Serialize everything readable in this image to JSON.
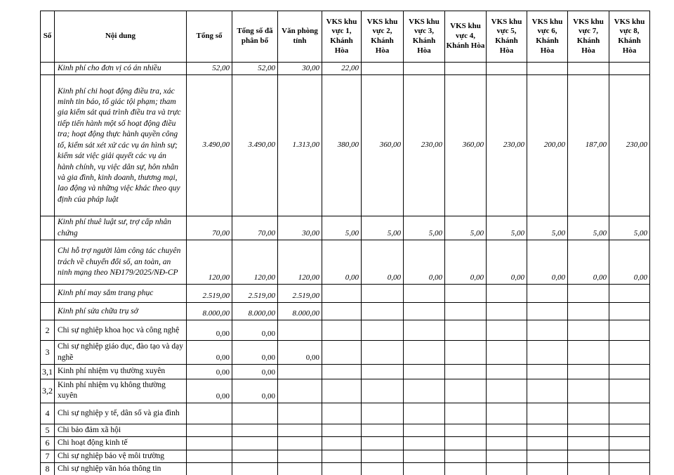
{
  "table": {
    "columns": [
      {
        "key": "so",
        "label": "Số"
      },
      {
        "key": "noi-dung",
        "label": "Nội dung"
      },
      {
        "key": "tong-so",
        "label": "Tổng số"
      },
      {
        "key": "tong-so-da-phan-bo",
        "label": "Tổng số đã\nphân bổ"
      },
      {
        "key": "van-phong-tinh",
        "label": "Văn phòng\ntỉnh"
      },
      {
        "key": "vks-khu-vuc-1",
        "label": "VKS khu\nvực 1,\nKhánh\nHòa"
      },
      {
        "key": "vks-khu-vuc-2",
        "label": "VKS khu\nvực 2,\nKhánh\nHòa"
      },
      {
        "key": "vks-khu-vuc-3",
        "label": "VKS khu\nvực 3,\nKhánh\nHòa"
      },
      {
        "key": "vks-khu-vuc-4",
        "label": "VKS khu\nvực 4,\nKhánh Hòa"
      },
      {
        "key": "vks-khu-vuc-5",
        "label": "VKS khu\nvực 5,\nKhánh\nHòa"
      },
      {
        "key": "vks-khu-vuc-6",
        "label": "VKS khu\nvực 6,\nKhánh\nHòa"
      },
      {
        "key": "vks-khu-vuc-7",
        "label": "VKS khu\nvực 7,\nKhánh\nHòa"
      },
      {
        "key": "vks-khu-vuc-8",
        "label": "VKS khu\nvực 8,\nKhánh\nHòa"
      }
    ],
    "rows": [
      {
        "no": "",
        "content": "Kinh phí cho đơn vị có án nhiều",
        "italic": true,
        "values": [
          "52,00",
          "52,00",
          "30,00",
          "22,00",
          "",
          "",
          "",
          "",
          "",
          "",
          ""
        ]
      },
      {
        "no": "",
        "content": "Kinh phí chi hoạt động điều tra, xác minh tin báo, tố giác tội phạm; tham gia kiểm sát quá trình điều tra và trực tiếp tiến hành một số hoạt động điều tra; hoạt động thực hành quyền công tố, kiểm sát xét xử các vụ án hình sự; kiểm sát việc giải quyết các vụ án hành chính, vụ việc dân sự, hôn nhân và gia đình, kinh doanh, thương mại, lao động và những việc khác theo quy định của pháp luật",
        "italic": true,
        "values": [
          "3.490,00",
          "3.490,00",
          "1.313,00",
          "380,00",
          "360,00",
          "230,00",
          "360,00",
          "230,00",
          "200,00",
          "187,00",
          "230,00"
        ]
      },
      {
        "no": "",
        "content": "Kinh phí thuê luật sư, trợ cấp nhân chứng",
        "italic": true,
        "values": [
          "70,00",
          "70,00",
          "30,00",
          "5,00",
          "5,00",
          "5,00",
          "5,00",
          "5,00",
          "5,00",
          "5,00",
          "5,00"
        ]
      },
      {
        "no": "",
        "content": "Chi hỗ trợ người làm công tác chuyên trách về chuyển đổi số, an toàn, an ninh mạng theo NĐ179/2025/NĐ-CP",
        "italic": true,
        "values": [
          "120,00",
          "120,00",
          "120,00",
          "0,00",
          "0,00",
          "0,00",
          "0,00",
          "0,00",
          "0,00",
          "0,00",
          "0,00"
        ]
      },
      {
        "no": "",
        "content": "Kinh phí may sắm trang phục",
        "italic": true,
        "values": [
          "2.519,00",
          "2.519,00",
          "2.519,00",
          "",
          "",
          "",
          "",
          "",
          "",
          "",
          ""
        ]
      },
      {
        "no": "",
        "content": "Kinh phí sửa chữa trụ sở",
        "italic": true,
        "values": [
          "8.000,00",
          "8.000,00",
          "8.000,00",
          "",
          "",
          "",
          "",
          "",
          "",
          "",
          ""
        ]
      },
      {
        "no": "2",
        "content": "Chi sự nghiệp khoa học và công nghệ",
        "italic": false,
        "values": [
          "0,00",
          "0,00",
          "",
          "",
          "",
          "",
          "",
          "",
          "",
          "",
          ""
        ]
      },
      {
        "no": "3",
        "content": "Chi sự nghiệp giáo dục, đào tạo và dạy nghề",
        "italic": false,
        "values": [
          "0,00",
          "0,00",
          "0,00",
          "",
          "",
          "",
          "",
          "",
          "",
          "",
          ""
        ]
      },
      {
        "no": "3,1",
        "content": "Kinh phí nhiệm vụ thường xuyên",
        "italic": false,
        "values": [
          "0,00",
          "0,00",
          "",
          "",
          "",
          "",
          "",
          "",
          "",
          "",
          ""
        ]
      },
      {
        "no": "3,2",
        "content": "Kinh phí nhiệm vụ không thường xuyên",
        "italic": false,
        "values": [
          "0,00",
          "0,00",
          "",
          "",
          "",
          "",
          "",
          "",
          "",
          "",
          ""
        ]
      },
      {
        "no": "4",
        "content": "Chi sự nghiệp y tế, dân số và gia đình",
        "italic": false,
        "values": [
          "",
          "",
          "",
          "",
          "",
          "",
          "",
          "",
          "",
          "",
          ""
        ]
      },
      {
        "no": "5",
        "content": "Chi bảo đảm xã hội",
        "italic": false,
        "values": [
          "",
          "",
          "",
          "",
          "",
          "",
          "",
          "",
          "",
          "",
          ""
        ]
      },
      {
        "no": "6",
        "content": "Chi hoạt động kinh tế",
        "italic": false,
        "values": [
          "",
          "",
          "",
          "",
          "",
          "",
          "",
          "",
          "",
          "",
          ""
        ]
      },
      {
        "no": "7",
        "content": "Chi sự nghiệp bảo vệ môi trường",
        "italic": false,
        "values": [
          "",
          "",
          "",
          "",
          "",
          "",
          "",
          "",
          "",
          "",
          ""
        ]
      },
      {
        "no": "8",
        "content": "Chi sự nghiệp văn hóa thông tin",
        "italic": false,
        "values": [
          "",
          "",
          "",
          "",
          "",
          "",
          "",
          "",
          "",
          "",
          ""
        ]
      }
    ]
  }
}
